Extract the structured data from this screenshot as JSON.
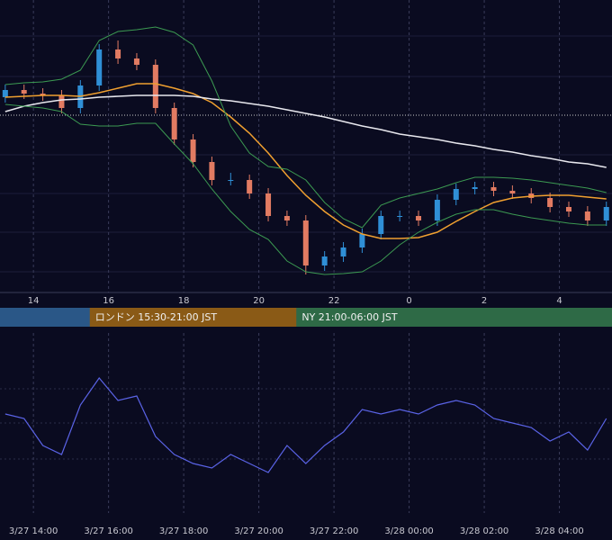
{
  "chart_data": [
    {
      "type": "candlestick",
      "x": [
        13.25,
        13.75,
        14.25,
        14.75,
        15.25,
        15.75,
        16.25,
        16.75,
        17.25,
        17.75,
        18.25,
        18.75,
        19.25,
        19.75,
        20.25,
        20.75,
        21.25,
        21.75,
        22.25,
        22.75,
        23.25,
        23.75,
        24.25,
        24.75,
        25.25,
        25.75,
        26.25,
        26.75,
        27.25,
        27.75,
        28.25,
        28.75,
        29.25
      ],
      "open": [
        222,
        230,
        226,
        224,
        210,
        235,
        275,
        265,
        258,
        210,
        175,
        150,
        130,
        130,
        115,
        90,
        85,
        35,
        45,
        55,
        70,
        90,
        90,
        85,
        108,
        120,
        122,
        118,
        115,
        110,
        100,
        95,
        85
      ],
      "high": [
        236,
        236,
        232,
        230,
        241,
        281,
        285,
        271,
        264,
        216,
        181,
        156,
        138,
        136,
        121,
        96,
        91,
        51,
        61,
        76,
        96,
        96,
        96,
        114,
        126,
        128,
        128,
        124,
        121,
        116,
        106,
        101,
        106
      ],
      "low": [
        216,
        220,
        218,
        204,
        204,
        229,
        259,
        252,
        204,
        169,
        144,
        124,
        124,
        109,
        84,
        79,
        25,
        29,
        39,
        49,
        64,
        84,
        79,
        79,
        102,
        114,
        112,
        109,
        104,
        94,
        89,
        79,
        79
      ],
      "close": [
        230,
        226,
        224,
        210,
        235,
        275,
        265,
        258,
        210,
        175,
        150,
        130,
        130,
        115,
        90,
        85,
        35,
        45,
        55,
        70,
        90,
        90,
        85,
        108,
        120,
        122,
        118,
        115,
        110,
        100,
        95,
        85,
        100
      ],
      "up_color": "#2f8fd6",
      "down_color": "#e27b62",
      "series": [
        {
          "color": "#f0a030",
          "values": [
            222,
            223,
            224,
            224,
            223,
            227,
            232,
            237,
            237,
            232,
            226,
            216,
            200,
            182,
            160,
            135,
            113,
            95,
            80,
            70,
            65,
            65,
            66,
            72,
            84,
            95,
            105,
            110,
            112,
            113,
            113,
            111,
            109
          ]
        },
        {
          "color": "#e8e8ee",
          "values": [
            206,
            212,
            216,
            219,
            220,
            222,
            223,
            224,
            224,
            224,
            223,
            220,
            218,
            215,
            212,
            208,
            204,
            200,
            195,
            190,
            186,
            181,
            178,
            175,
            171,
            168,
            164,
            161,
            157,
            154,
            150,
            148,
            144
          ]
        },
        {
          "color": "#3c9a52",
          "values": [
            236,
            238,
            239,
            242,
            252,
            285,
            295,
            297,
            300,
            294,
            280,
            240,
            190,
            160,
            145,
            142,
            130,
            105,
            87,
            77,
            102,
            110,
            115,
            120,
            127,
            133,
            133,
            132,
            130,
            127,
            124,
            121,
            116
          ]
        },
        {
          "color": "#3c9a52",
          "values": [
            214,
            212,
            210,
            206,
            192,
            190,
            190,
            193,
            193,
            170,
            148,
            120,
            95,
            75,
            64,
            40,
            28,
            25,
            26,
            28,
            40,
            58,
            72,
            83,
            92,
            97,
            97,
            92,
            88,
            85,
            82,
            80,
            80
          ]
        }
      ],
      "xlim": [
        13.11,
        29.4
      ],
      "ylim": [
        5,
        330
      ],
      "xticks": [
        14,
        16,
        18,
        20,
        22,
        {
          "value": 24,
          "label": "0"
        },
        {
          "value": 26,
          "label": "2"
        },
        {
          "value": 28,
          "label": "4"
        }
      ],
      "sessions": [
        {
          "label": "ロンドン 15:30-21:00 JST",
          "start": 15.5,
          "end": 21,
          "color": "#8a5a16"
        },
        {
          "label": "NY 21:00-06:00 JST",
          "start": 21,
          "end": 30,
          "color": "#2e6a46"
        }
      ]
    },
    {
      "type": "line",
      "x": [
        13.25,
        13.75,
        14.25,
        14.75,
        15.25,
        15.75,
        16.25,
        16.75,
        17.25,
        17.75,
        18.25,
        18.75,
        19.25,
        19.75,
        20.25,
        20.75,
        21.25,
        21.75,
        22.25,
        22.75,
        23.25,
        23.75,
        24.25,
        24.75,
        25.25,
        25.75,
        26.25,
        26.75,
        27.25,
        27.75,
        28.25,
        28.75,
        29.25
      ],
      "values": [
        110,
        105,
        75,
        65,
        120,
        150,
        125,
        130,
        85,
        65,
        55,
        50,
        65,
        55,
        45,
        75,
        55,
        75,
        90,
        115,
        110,
        115,
        110,
        120,
        125,
        120,
        105,
        100,
        95,
        80,
        90,
        70,
        105
      ],
      "color": "#5a63e6",
      "xlim": [
        13.11,
        29.4
      ],
      "ylim": [
        0,
        200
      ],
      "xticks": [
        {
          "value": 14,
          "label": "3/27 14:00"
        },
        {
          "value": 16,
          "label": "3/27 16:00"
        },
        {
          "value": 18,
          "label": "3/27 18:00"
        },
        {
          "value": 20,
          "label": "3/27 20:00"
        },
        {
          "value": 22,
          "label": "3/27 22:00"
        },
        {
          "value": 24,
          "label": "3/28 00:00"
        },
        {
          "value": 26,
          "label": "3/28 02:00"
        },
        {
          "value": 28,
          "label": "3/28 04:00"
        }
      ]
    }
  ]
}
